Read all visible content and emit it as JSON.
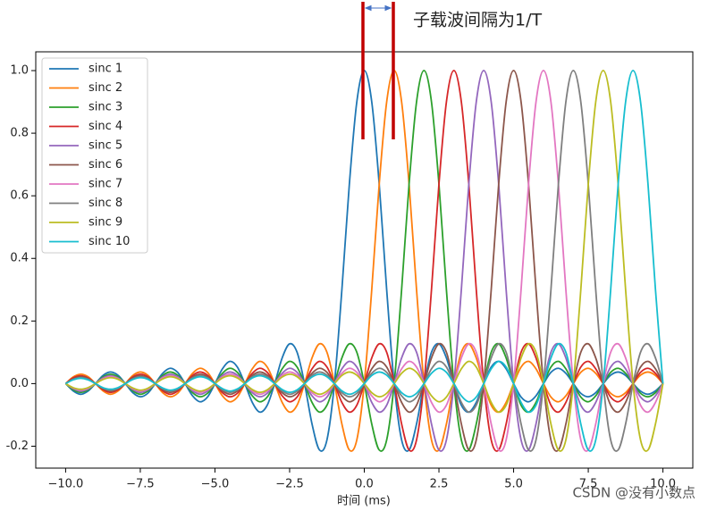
{
  "chart_data": {
    "type": "line",
    "annotation": "子载波间隔为1/T",
    "xlabel": "时间 (ms)",
    "watermark": "CSDN @没有小数点",
    "xlim": [
      -11,
      11
    ],
    "ylim": [
      -0.27,
      1.06
    ],
    "xticks": [
      {
        "value": -10,
        "label": "−10.0"
      },
      {
        "value": -7.5,
        "label": "−7.5"
      },
      {
        "value": -5,
        "label": "−5.0"
      },
      {
        "value": -2.5,
        "label": "−2.5"
      },
      {
        "value": 0,
        "label": "0.0"
      },
      {
        "value": 2.5,
        "label": "2.5"
      },
      {
        "value": 5,
        "label": "5.0"
      },
      {
        "value": 7.5,
        "label": "7.5"
      },
      {
        "value": 10,
        "label": "10.0"
      }
    ],
    "yticks": [
      {
        "value": -0.2,
        "label": "-0.2"
      },
      {
        "value": 0,
        "label": "0.0"
      },
      {
        "value": 0.2,
        "label": "0.2"
      },
      {
        "value": 0.4,
        "label": "0.4"
      },
      {
        "value": 0.6,
        "label": "0.6"
      },
      {
        "value": 0.8,
        "label": "0.8"
      },
      {
        "value": 1,
        "label": "1.0"
      }
    ],
    "legend": "upper left",
    "x": [
      -10,
      -9.75,
      -9.5,
      -9.25,
      -9,
      -8.75,
      -8.5,
      -8.25,
      -8,
      -7.75,
      -7.5,
      -7.25,
      -7,
      -6.75,
      -6.5,
      -6.25,
      -6,
      -5.75,
      -5.5,
      -5.25,
      -5,
      -4.75,
      -4.5,
      -4.25,
      -4,
      -3.75,
      -3.5,
      -3.25,
      -3,
      -2.75,
      -2.5,
      -2.25,
      -2,
      -1.75,
      -1.5,
      -1.25,
      -1,
      -0.75,
      -0.5,
      -0.25,
      0,
      0.25,
      0.5,
      0.75,
      1,
      1.25,
      1.5,
      1.75,
      2,
      2.25,
      2.5,
      2.75,
      3,
      3.25,
      3.5,
      3.75,
      4,
      4.25,
      4.5,
      4.75,
      5,
      5.25,
      5.5,
      5.75,
      6,
      6.25,
      6.5,
      6.75,
      7,
      7.25,
      7.5,
      7.75,
      8,
      8.25,
      8.5,
      8.75,
      9,
      9.25,
      9.5,
      9.75,
      10
    ],
    "series": [
      {
        "name": "sinc 1",
        "color": "#1f77b4",
        "values": [
          0,
          -0.023,
          -0.034,
          -0.024,
          0,
          0.026,
          0.037,
          0.027,
          0,
          -0.029,
          -0.042,
          -0.031,
          0,
          0.033,
          0.049,
          0.036,
          0,
          -0.039,
          -0.058,
          -0.043,
          0,
          0.047,
          0.071,
          0.053,
          0,
          -0.06,
          -0.091,
          -0.069,
          0,
          0.082,
          0.127,
          0.1,
          0,
          -0.129,
          -0.212,
          -0.18,
          0,
          0.3,
          0.637,
          0.9,
          1,
          0.9,
          0.637,
          0.3,
          0,
          -0.18,
          -0.212,
          -0.129,
          0,
          0.1,
          0.127,
          0.082,
          0,
          -0.069,
          -0.091,
          -0.06,
          0,
          0.053,
          0.071,
          0.047,
          0,
          -0.043,
          -0.058,
          -0.039,
          0,
          0.036,
          0.049,
          0.033,
          0,
          -0.031,
          -0.042,
          -0.029,
          0,
          0.027,
          0.037,
          0.026,
          0,
          -0.024,
          -0.034,
          -0.023,
          0
        ]
      },
      {
        "name": "sinc 2",
        "color": "#ff7f0e",
        "values": [
          0,
          0.021,
          0.03,
          0.022,
          0,
          -0.023,
          -0.034,
          -0.024,
          0,
          0.026,
          0.037,
          0.027,
          0,
          -0.029,
          -0.042,
          -0.031,
          0,
          0.033,
          0.049,
          0.036,
          0,
          -0.039,
          -0.058,
          -0.043,
          0,
          0.047,
          0.071,
          0.053,
          0,
          -0.06,
          -0.091,
          -0.069,
          0,
          0.082,
          0.127,
          0.1,
          0,
          -0.129,
          -0.212,
          -0.18,
          0,
          0.3,
          0.637,
          0.9,
          1,
          0.9,
          0.637,
          0.3,
          0,
          -0.18,
          -0.212,
          -0.129,
          0,
          0.1,
          0.127,
          0.082,
          0,
          -0.069,
          -0.091,
          -0.06,
          0,
          0.053,
          0.071,
          0.047,
          0,
          -0.043,
          -0.058,
          -0.039,
          0,
          0.036,
          0.049,
          0.033,
          0,
          -0.031,
          -0.042,
          -0.029,
          0,
          0.027,
          0.037,
          0.026,
          0
        ]
      },
      {
        "name": "sinc 3",
        "color": "#2ca02c",
        "values": [
          0,
          -0.019,
          -0.028,
          -0.02,
          0,
          0.021,
          0.03,
          0.022,
          0,
          -0.023,
          -0.034,
          -0.024,
          0,
          0.026,
          0.037,
          0.027,
          0,
          -0.029,
          -0.042,
          -0.031,
          0,
          0.033,
          0.049,
          0.036,
          0,
          -0.039,
          -0.058,
          -0.043,
          0,
          0.047,
          0.071,
          0.053,
          0,
          -0.06,
          -0.091,
          -0.069,
          0,
          0.082,
          0.127,
          0.1,
          0,
          -0.129,
          -0.212,
          -0.18,
          0,
          0.3,
          0.637,
          0.9,
          1,
          0.9,
          0.637,
          0.3,
          0,
          -0.18,
          -0.212,
          -0.129,
          0,
          0.1,
          0.127,
          0.082,
          0,
          -0.069,
          -0.091,
          -0.06,
          0,
          0.053,
          0.071,
          0.047,
          0,
          -0.043,
          -0.058,
          -0.039,
          0,
          0.036,
          0.049,
          0.033,
          0,
          -0.031,
          -0.042,
          -0.029,
          0
        ]
      },
      {
        "name": "sinc 4",
        "color": "#d62728",
        "values": [
          0,
          0.018,
          0.025,
          0.018,
          0,
          -0.019,
          -0.028,
          -0.02,
          0,
          0.021,
          0.03,
          0.022,
          0,
          -0.023,
          -0.034,
          -0.024,
          0,
          0.026,
          0.037,
          0.027,
          0,
          -0.029,
          -0.042,
          -0.031,
          0,
          0.033,
          0.049,
          0.036,
          0,
          -0.039,
          -0.058,
          -0.043,
          0,
          0.047,
          0.071,
          0.053,
          0,
          -0.06,
          -0.091,
          -0.069,
          0,
          0.082,
          0.127,
          0.1,
          0,
          -0.129,
          -0.212,
          -0.18,
          0,
          0.3,
          0.637,
          0.9,
          1,
          0.9,
          0.637,
          0.3,
          0,
          -0.18,
          -0.212,
          -0.129,
          0,
          0.1,
          0.127,
          0.082,
          0,
          -0.069,
          -0.091,
          -0.06,
          0,
          0.053,
          0.071,
          0.047,
          0,
          -0.043,
          -0.058,
          -0.039,
          0,
          0.036,
          0.049,
          0.033,
          0
        ]
      },
      {
        "name": "sinc 5",
        "color": "#9467bd",
        "values": [
          0,
          -0.016,
          -0.024,
          -0.017,
          0,
          0.018,
          0.025,
          0.018,
          0,
          -0.019,
          -0.028,
          -0.02,
          0,
          0.021,
          0.03,
          0.022,
          0,
          -0.023,
          -0.034,
          -0.024,
          0,
          0.026,
          0.037,
          0.027,
          0,
          -0.029,
          -0.042,
          -0.031,
          0,
          0.033,
          0.049,
          0.036,
          0,
          -0.039,
          -0.058,
          -0.043,
          0,
          0.047,
          0.071,
          0.053,
          0,
          -0.06,
          -0.091,
          -0.069,
          0,
          0.082,
          0.127,
          0.1,
          0,
          -0.129,
          -0.212,
          -0.18,
          0,
          0.3,
          0.637,
          0.9,
          1,
          0.9,
          0.637,
          0.3,
          0,
          -0.18,
          -0.212,
          -0.129,
          0,
          0.1,
          0.127,
          0.082,
          0,
          -0.069,
          -0.091,
          -0.06,
          0,
          0.053,
          0.071,
          0.047,
          0,
          -0.043,
          -0.058,
          -0.039,
          0
        ]
      },
      {
        "name": "sinc 6",
        "color": "#8c564b",
        "values": [
          0,
          0.015,
          0.022,
          0.016,
          0,
          -0.016,
          -0.024,
          -0.017,
          0,
          0.018,
          0.025,
          0.018,
          0,
          -0.019,
          -0.028,
          -0.02,
          0,
          0.021,
          0.03,
          0.022,
          0,
          -0.023,
          -0.034,
          -0.024,
          0,
          0.026,
          0.037,
          0.027,
          0,
          -0.029,
          -0.042,
          -0.031,
          0,
          0.033,
          0.049,
          0.036,
          0,
          -0.039,
          -0.058,
          -0.043,
          0,
          0.047,
          0.071,
          0.053,
          0,
          -0.06,
          -0.091,
          -0.069,
          0,
          0.082,
          0.127,
          0.1,
          0,
          -0.129,
          -0.212,
          -0.18,
          0,
          0.3,
          0.637,
          0.9,
          1,
          0.9,
          0.637,
          0.3,
          0,
          -0.18,
          -0.212,
          -0.129,
          0,
          0.1,
          0.127,
          0.082,
          0,
          -0.069,
          -0.091,
          -0.06,
          0,
          0.053,
          0.071,
          0.047,
          0
        ]
      },
      {
        "name": "sinc 7",
        "color": "#e377c2",
        "values": [
          0,
          -0.014,
          -0.021,
          -0.015,
          0,
          0.015,
          0.022,
          0.016,
          0,
          -0.016,
          -0.024,
          -0.017,
          0,
          0.018,
          0.025,
          0.018,
          0,
          -0.019,
          -0.028,
          -0.02,
          0,
          0.021,
          0.03,
          0.022,
          0,
          -0.023,
          -0.034,
          -0.024,
          0,
          0.026,
          0.037,
          0.027,
          0,
          -0.029,
          -0.042,
          -0.031,
          0,
          0.033,
          0.049,
          0.036,
          0,
          -0.039,
          -0.058,
          -0.043,
          0,
          0.047,
          0.071,
          0.053,
          0,
          -0.06,
          -0.091,
          -0.069,
          0,
          0.082,
          0.127,
          0.1,
          0,
          -0.129,
          -0.212,
          -0.18,
          0,
          0.3,
          0.637,
          0.9,
          1,
          0.9,
          0.637,
          0.3,
          0,
          -0.18,
          -0.212,
          -0.129,
          0,
          0.1,
          0.127,
          0.082,
          0,
          -0.069,
          -0.091,
          -0.06,
          0
        ]
      },
      {
        "name": "sinc 8",
        "color": "#7f7f7f",
        "values": [
          0,
          0.013,
          0.019,
          0.014,
          0,
          -0.014,
          -0.021,
          -0.015,
          0,
          0.015,
          0.022,
          0.016,
          0,
          -0.016,
          -0.024,
          -0.017,
          0,
          0.018,
          0.025,
          0.018,
          0,
          -0.019,
          -0.028,
          -0.02,
          0,
          0.021,
          0.03,
          0.022,
          0,
          -0.023,
          -0.034,
          -0.024,
          0,
          0.026,
          0.037,
          0.027,
          0,
          -0.029,
          -0.042,
          -0.031,
          0,
          0.033,
          0.049,
          0.036,
          0,
          -0.039,
          -0.058,
          -0.043,
          0,
          0.047,
          0.071,
          0.053,
          0,
          -0.06,
          -0.091,
          -0.069,
          0,
          0.082,
          0.127,
          0.1,
          0,
          -0.129,
          -0.212,
          -0.18,
          0,
          0.3,
          0.637,
          0.9,
          1,
          0.9,
          0.637,
          0.3,
          0,
          -0.18,
          -0.212,
          -0.129,
          0,
          0.1,
          0.127,
          0.082,
          0
        ]
      },
      {
        "name": "sinc 9",
        "color": "#bcbd22",
        "values": [
          0,
          -0.013,
          -0.018,
          -0.013,
          0,
          0.013,
          0.019,
          0.014,
          0,
          -0.014,
          -0.021,
          -0.015,
          0,
          0.015,
          0.022,
          0.016,
          0,
          -0.016,
          -0.024,
          -0.017,
          0,
          0.018,
          0.025,
          0.018,
          0,
          -0.019,
          -0.028,
          -0.02,
          0,
          0.021,
          0.03,
          0.022,
          0,
          -0.023,
          -0.034,
          -0.024,
          0,
          0.026,
          0.037,
          0.027,
          0,
          -0.029,
          -0.042,
          -0.031,
          0,
          0.033,
          0.049,
          0.036,
          0,
          -0.039,
          -0.058,
          -0.043,
          0,
          0.047,
          0.071,
          0.053,
          0,
          -0.06,
          -0.091,
          -0.069,
          0,
          0.082,
          0.127,
          0.1,
          0,
          -0.129,
          -0.212,
          -0.18,
          0,
          0.3,
          0.637,
          0.9,
          1,
          0.9,
          0.637,
          0.3,
          0,
          -0.18,
          -0.212,
          -0.129,
          0
        ]
      },
      {
        "name": "sinc 10",
        "color": "#17becf",
        "values": [
          0,
          0.012,
          0.017,
          0.012,
          0,
          -0.013,
          -0.018,
          -0.013,
          0,
          0.013,
          0.019,
          0.014,
          0,
          -0.014,
          -0.021,
          -0.015,
          0,
          0.015,
          0.022,
          0.016,
          0,
          -0.016,
          -0.024,
          -0.017,
          0,
          0.018,
          0.025,
          0.018,
          0,
          -0.019,
          -0.028,
          -0.02,
          0,
          0.021,
          0.03,
          0.022,
          0,
          -0.023,
          -0.034,
          -0.024,
          0,
          0.026,
          0.037,
          0.027,
          0,
          -0.029,
          -0.042,
          -0.031,
          0,
          0.033,
          0.049,
          0.036,
          0,
          -0.039,
          -0.058,
          -0.043,
          0,
          0.047,
          0.071,
          0.053,
          0,
          -0.06,
          -0.091,
          -0.069,
          0,
          0.082,
          0.127,
          0.1,
          0,
          -0.129,
          -0.212,
          -0.18,
          0,
          0.3,
          0.637,
          0.9,
          1,
          0.9,
          0.637,
          0.3,
          0
        ]
      }
    ]
  }
}
